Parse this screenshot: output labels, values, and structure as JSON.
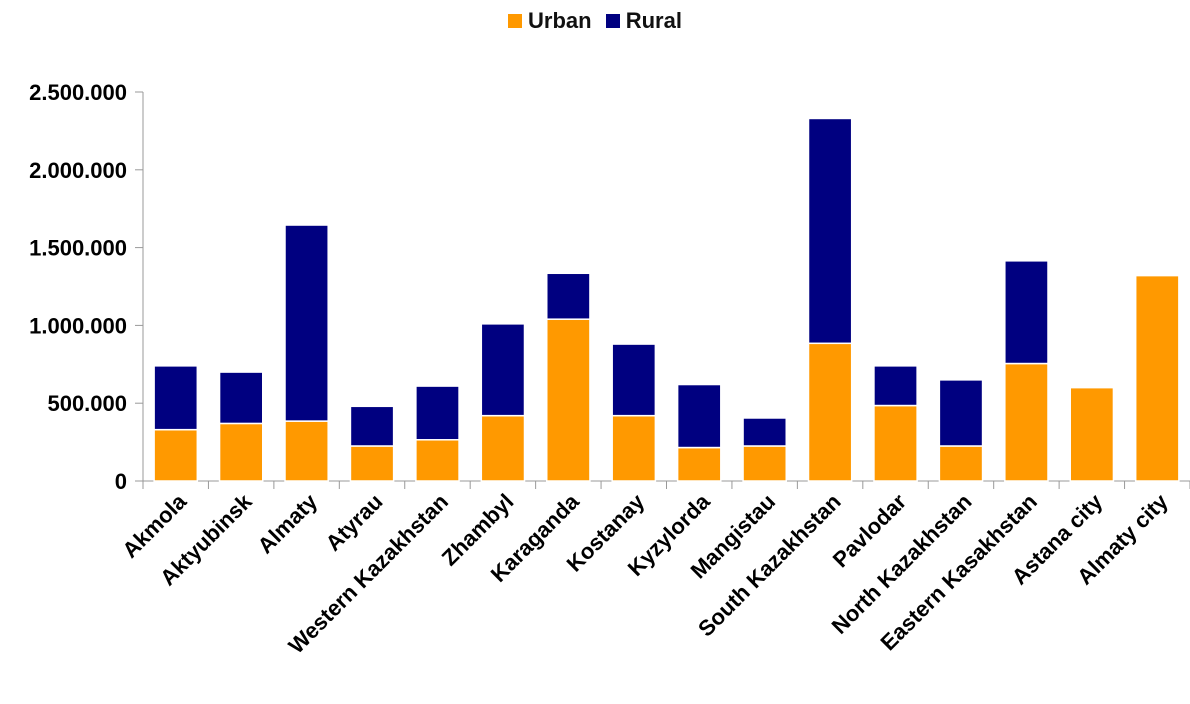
{
  "chart_data": {
    "type": "bar",
    "stacked": true,
    "categories": [
      "Akmola",
      "Aktyubinsk",
      "Almaty",
      "Atyrau",
      "Western Kazakhstan",
      "Zhambyl",
      "Karaganda",
      "Kostanay",
      "Kyzylorda",
      "Mangistau",
      "South Kazakhstan",
      "Pavlodar",
      "North Kazakhstan",
      "Eastern Kasakhstan",
      "Astana city",
      "Almaty city"
    ],
    "series": [
      {
        "name": "Urban",
        "color": "#FF9900",
        "values": [
          330000,
          370000,
          385000,
          225000,
          265000,
          420000,
          1040000,
          420000,
          215000,
          225000,
          885000,
          485000,
          225000,
          755000,
          600000,
          1320000
        ]
      },
      {
        "name": "Rural",
        "color": "#000080",
        "values": [
          410000,
          330000,
          1260000,
          255000,
          345000,
          590000,
          295000,
          460000,
          405000,
          180000,
          1445000,
          255000,
          425000,
          660000,
          0,
          0
        ]
      }
    ],
    "y_ticks": [
      "0",
      "500.000",
      "1.000.000",
      "1.500.000",
      "2.000.000",
      "2.500.000"
    ],
    "ylim": [
      0,
      2500000
    ],
    "grid": false,
    "legend_position": "top-center"
  }
}
